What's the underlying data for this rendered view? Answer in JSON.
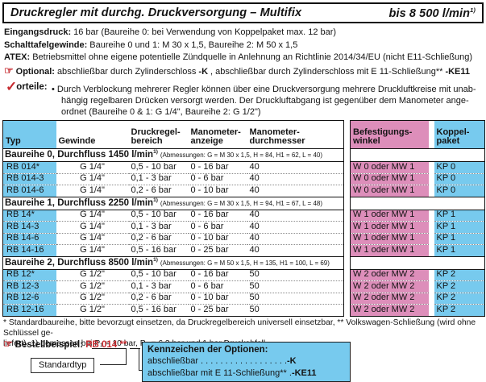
{
  "colors": {
    "blue": "#77caee",
    "pink": "#dd8eba",
    "red": "#c62b30"
  },
  "header": {
    "title": "Druckregler mit durchg. Druckversorgung – Multifix",
    "flow": "bis 8 500 l/min",
    "flow_sup": "1)"
  },
  "specs": [
    {
      "label": "Eingangsdruck:",
      "segments": [
        {
          "t": "16 bar (Baureihe 0: bei Verwendung von Koppelpaket max. 12 bar)",
          "b": false
        }
      ]
    },
    {
      "label": "Schalttafelgewinde:",
      "segments": [
        {
          "t": "Baureihe 0 und 1: M 30 x 1,5, Baureihe 2: M 50 x 1,5",
          "b": false
        }
      ]
    },
    {
      "label": "ATEX:",
      "segments": [
        {
          "t": "Betriebsmittel ohne eigene potentielle Zündquelle in Anlehnung an Richtlinie 2014/34/EU (nicht E11-Schließung)",
          "b": false
        }
      ]
    },
    {
      "icon": "☞",
      "label": "Optional:",
      "segments": [
        {
          "t": "abschließbar durch Zylinderschloss ",
          "b": false
        },
        {
          "t": "-K",
          "b": true
        },
        {
          "t": ", abschließbar durch Zylinderschloss mit E 11-Schließung** ",
          "b": false
        },
        {
          "t": "-KE11",
          "b": true
        }
      ]
    }
  ],
  "vorteile": {
    "check": "✓",
    "label": "orteile:",
    "bullet": "•",
    "lines": [
      "Durch Verblockung mehrerer Regler können über eine Druckversorgung mehrere Druckluftkreise mit unab-",
      "hängig regelbaren Drücken versorgt werden. Der Druckluftabgang ist gegenüber dem Manometer ange-",
      "ordnet (Baureihe 0 & 1: G 1/4\", Baureihe 2: G 1/2\")"
    ]
  },
  "table": {
    "columns": [
      [
        "Typ"
      ],
      [
        "Gewinde"
      ],
      [
        "Druckregel-",
        "bereich"
      ],
      [
        "Manometer-",
        "anzeige"
      ],
      [
        "Manometer-",
        "durchmesser"
      ]
    ],
    "right_columns": [
      [
        "Befestigungs-",
        "winkel"
      ],
      [
        "Koppel-",
        "paket"
      ]
    ],
    "sections": [
      {
        "title": "Baureihe 0, Durchfluss 1450 l/min",
        "sup": "1)",
        "dims": "(Abmessungen: G = M 30 x 1,5, H = 84, H1 = 62, L = 40)",
        "rows": [
          {
            "typ": "RB 014*",
            "gewinde": "G 1/4\"",
            "bereich": "0,5 - 10 bar",
            "anzeige": "0 - 16 bar",
            "durchmesser": "40",
            "winkel": "W 0 oder MW 1",
            "paket": "KP 0"
          },
          {
            "typ": "RB 014-3",
            "gewinde": "G 1/4\"",
            "bereich": "0,1 - 3 bar",
            "anzeige": "0 - 6 bar",
            "durchmesser": "40",
            "winkel": "W 0 oder MW 1",
            "paket": "KP 0"
          },
          {
            "typ": "RB 014-6",
            "gewinde": "G 1/4\"",
            "bereich": "0,2 - 6 bar",
            "anzeige": "0 - 10 bar",
            "durchmesser": "40",
            "winkel": "W 0 oder MW 1",
            "paket": "KP 0"
          }
        ]
      },
      {
        "title": "Baureihe 1, Durchfluss 2250 l/min",
        "sup": "1)",
        "dims": "(Abmessungen: G = M 30 x 1,5, H = 94, H1 = 67, L = 48)",
        "rows": [
          {
            "typ": "RB 14*",
            "gewinde": "G 1/4\"",
            "bereich": "0,5 - 10 bar",
            "anzeige": "0 - 16 bar",
            "durchmesser": "40",
            "winkel": "W 1 oder MW 1",
            "paket": "KP 1"
          },
          {
            "typ": "RB 14-3",
            "gewinde": "G 1/4\"",
            "bereich": "0,1 - 3 bar",
            "anzeige": "0 - 6 bar",
            "durchmesser": "40",
            "winkel": "W 1 oder MW 1",
            "paket": "KP 1"
          },
          {
            "typ": "RB 14-6",
            "gewinde": "G 1/4\"",
            "bereich": "0,2 - 6 bar",
            "anzeige": "0 - 10 bar",
            "durchmesser": "40",
            "winkel": "W 1 oder MW 1",
            "paket": "KP 1"
          },
          {
            "typ": "RB 14-16",
            "gewinde": "G 1/4\"",
            "bereich": "0,5 - 16 bar",
            "anzeige": "0 - 25 bar",
            "durchmesser": "40",
            "winkel": "W 1 oder MW 1",
            "paket": "KP 1"
          }
        ]
      },
      {
        "title": "Baureihe 2, Durchfluss 8500 l/min",
        "sup": "1)",
        "dims": "(Abmessungen: G = M 50 x 1,5, H = 135, H1 = 100, L = 69)",
        "rows": [
          {
            "typ": "RB 12*",
            "gewinde": "G 1/2\"",
            "bereich": "0,5 - 10 bar",
            "anzeige": "0 - 16 bar",
            "durchmesser": "50",
            "winkel": "W 2 oder MW 2",
            "paket": "KP 2"
          },
          {
            "typ": "RB 12-3",
            "gewinde": "G 1/2\"",
            "bereich": "0,1 - 3 bar",
            "anzeige": "0 - 6 bar",
            "durchmesser": "50",
            "winkel": "W 2 oder MW 2",
            "paket": "KP 2"
          },
          {
            "typ": "RB 12-6",
            "gewinde": "G 1/2\"",
            "bereich": "0,2 - 6 bar",
            "anzeige": "0 - 10 bar",
            "durchmesser": "50",
            "winkel": "W 2 oder MW 2",
            "paket": "KP 2"
          },
          {
            "typ": "RB 12-16",
            "gewinde": "G 1/2\"",
            "bereich": "0,5 - 16 bar",
            "anzeige": "0 - 25 bar",
            "durchmesser": "50",
            "winkel": "W 2 oder MW 2",
            "paket": "KP 2"
          }
        ]
      }
    ]
  },
  "footnote_lines": [
    "* Standardbaureihe, bitte bevorzugt einsetzen, da Druckregelbereich universell einsetzbar, ** Volkswagen-Schließung (wird ohne Schlüssel ge-",
    "liefert). 1) gemessen bei P₁ = 10 bar, P₂ = 6,3 bar und 1 bar Druckabfall"
  ],
  "order": {
    "icon": "☞",
    "label": "Bestellbeispiel:",
    "code": "RB 014",
    "stars": "**",
    "standard_label": "Standardtyp",
    "options": {
      "title": "Kennzeichen der Optionen:",
      "lines": [
        {
          "name": "abschließbar",
          "dots": " . . . . . . . . . . . . . . . . . .",
          "code": "-K"
        },
        {
          "name": "abschließbar mit E 11-Schließung**",
          "dots": " .",
          "code": "-KE11"
        }
      ]
    }
  }
}
